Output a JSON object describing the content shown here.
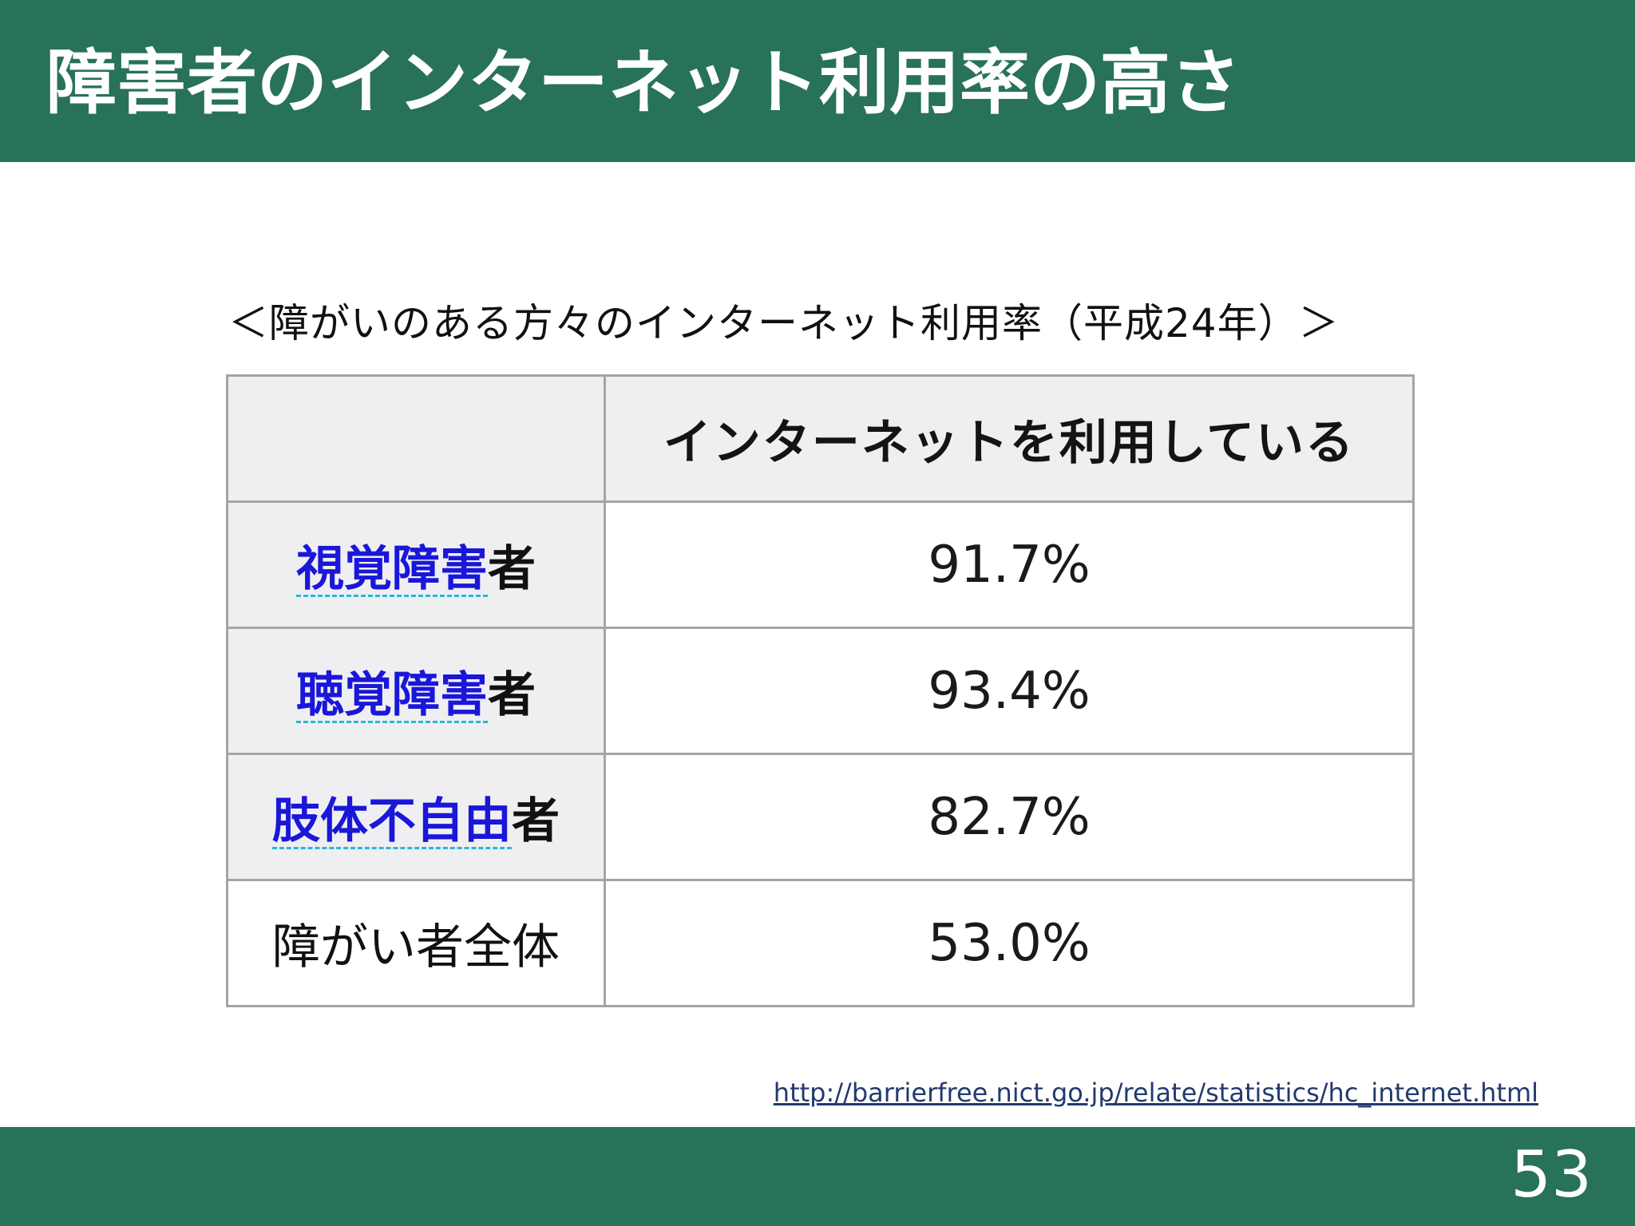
{
  "slide": {
    "title": "障害者のインターネット利用率の高さ",
    "page_number": "53"
  },
  "table": {
    "caption": "＜障がいのある方々のインターネット利用率（平成24年）＞",
    "header": {
      "empty": "",
      "column": "インターネットを利用している"
    },
    "rows": [
      {
        "link_label": "視覚障害",
        "suffix": "者",
        "value": "91.7%"
      },
      {
        "link_label": "聴覚障害",
        "suffix": "者",
        "value": "93.4%"
      },
      {
        "link_label": "肢体不自由",
        "suffix": "者",
        "value": "82.7%"
      },
      {
        "label": "障がい者全体",
        "value": "53.0%"
      }
    ]
  },
  "source": {
    "url_text": "http://barrierfree.nict.go.jp/relate/statistics/hc_internet.html"
  },
  "colors": {
    "brand_green": "#287257",
    "link_blue": "#1a17d9",
    "cell_shade": "#efeff1"
  }
}
